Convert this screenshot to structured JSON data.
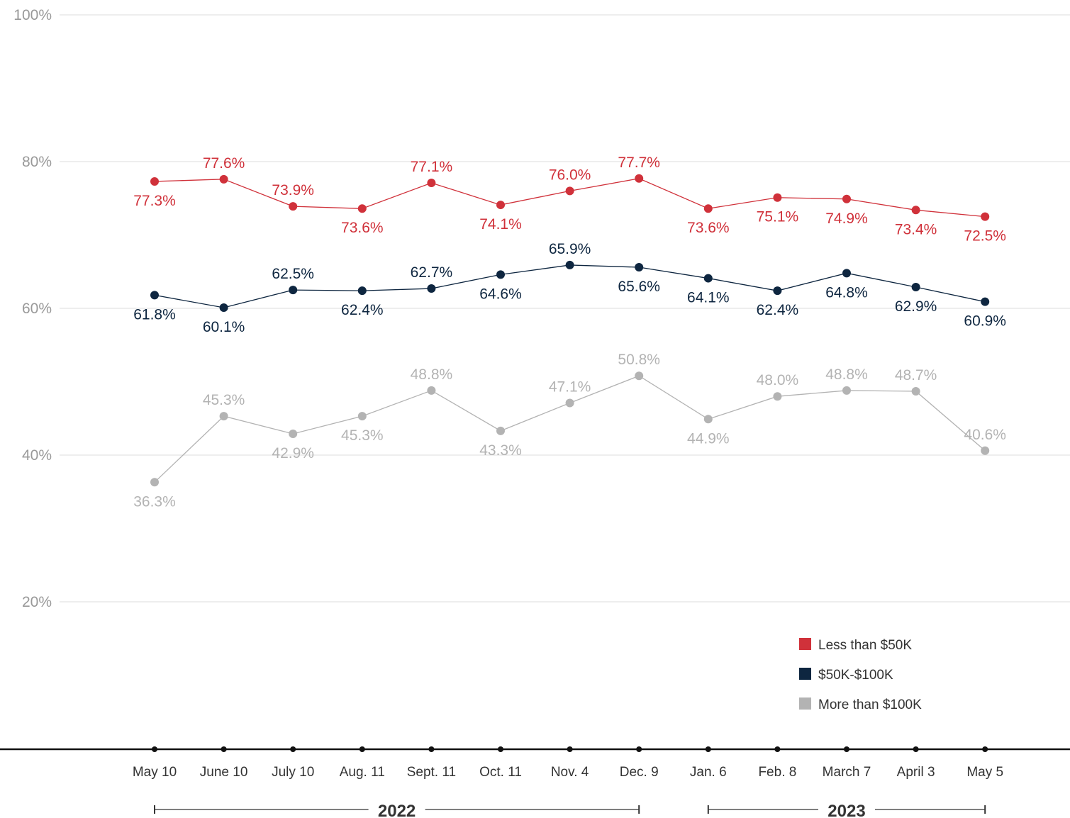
{
  "chart_data": {
    "type": "line",
    "title": "",
    "xlabel": "",
    "ylabel": "",
    "ylim": [
      0,
      100
    ],
    "y_ticks": [
      20,
      40,
      60,
      80,
      100
    ],
    "y_tick_labels": [
      "20%",
      "40%",
      "60%",
      "80%",
      "100%"
    ],
    "grid": true,
    "legend_position": "bottom-right",
    "categories": [
      "May 10",
      "June 10",
      "July 10",
      "Aug. 11",
      "Sept. 11",
      "Oct. 11",
      "Nov. 4",
      "Dec. 9",
      "Jan. 6",
      "Feb. 8",
      "March 7",
      "April 3",
      "May 5"
    ],
    "year_groups": [
      {
        "label": "2022",
        "from": 0,
        "to": 7
      },
      {
        "label": "2023",
        "from": 8,
        "to": 12
      }
    ],
    "series": [
      {
        "name": "Less than $50K",
        "color": "#d0313a",
        "values": [
          77.3,
          77.6,
          73.9,
          73.6,
          77.1,
          74.1,
          76.0,
          77.7,
          73.6,
          75.1,
          74.9,
          73.4,
          72.5
        ],
        "labels": [
          "77.3%",
          "77.6%",
          "73.9%",
          "73.6%",
          "77.1%",
          "74.1%",
          "76.0%",
          "77.7%",
          "73.6%",
          "75.1%",
          "74.9%",
          "73.4%",
          "72.5%"
        ],
        "label_pos": [
          "below",
          "above",
          "above",
          "below",
          "above",
          "below",
          "above",
          "above",
          "below",
          "below",
          "below",
          "below",
          "below"
        ]
      },
      {
        "name": "$50K-$100K",
        "color": "#0e2640",
        "values": [
          61.8,
          60.1,
          62.5,
          62.4,
          62.7,
          64.6,
          65.9,
          65.6,
          64.1,
          62.4,
          64.8,
          62.9,
          60.9
        ],
        "labels": [
          "61.8%",
          "60.1%",
          "62.5%",
          "62.4%",
          "62.7%",
          "64.6%",
          "65.9%",
          "65.6%",
          "64.1%",
          "62.4%",
          "64.8%",
          "62.9%",
          "60.9%"
        ],
        "label_pos": [
          "below",
          "below",
          "above",
          "below",
          "above",
          "below",
          "above",
          "below",
          "below",
          "below",
          "below",
          "below",
          "below"
        ]
      },
      {
        "name": "More than $100K",
        "color": "#b3b3b3",
        "values": [
          36.3,
          45.3,
          42.9,
          45.3,
          48.8,
          43.3,
          47.1,
          50.8,
          44.9,
          48.0,
          48.8,
          48.7,
          40.6
        ],
        "labels": [
          "36.3%",
          "45.3%",
          "42.9%",
          "45.3%",
          "48.8%",
          "43.3%",
          "47.1%",
          "50.8%",
          "44.9%",
          "48.0%",
          "48.8%",
          "48.7%",
          "40.6%"
        ],
        "label_pos": [
          "below",
          "above",
          "below",
          "below",
          "above",
          "below",
          "above",
          "above",
          "below",
          "above",
          "above",
          "above",
          "above"
        ]
      }
    ]
  }
}
